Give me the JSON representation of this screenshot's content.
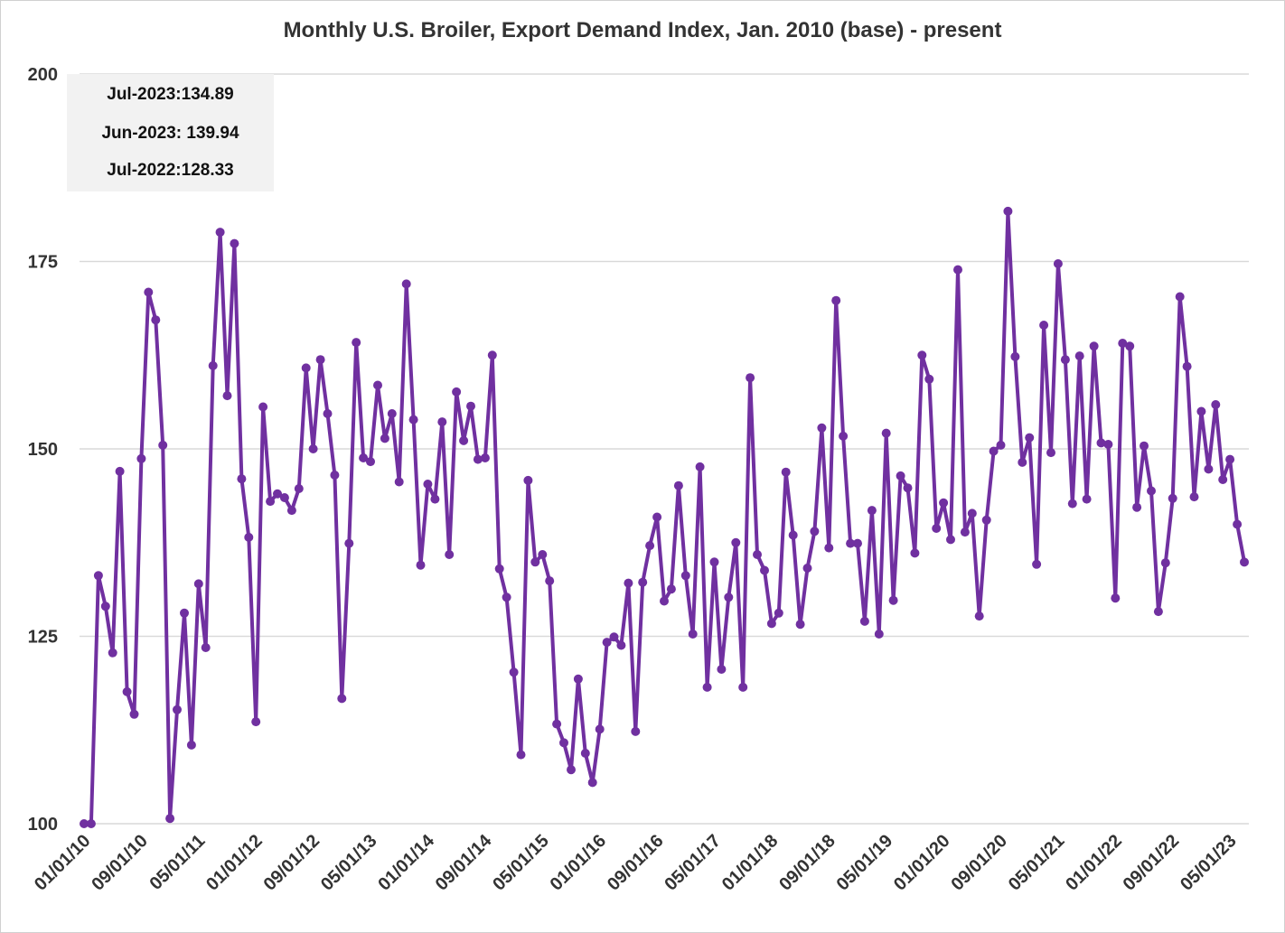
{
  "chart_data": {
    "type": "line",
    "title": "Monthly U.S. Broiler, Export Demand Index, Jan. 2010 (base) - present",
    "xlabel": "",
    "ylabel": "",
    "ylim": [
      100,
      200
    ],
    "y_ticks": [
      "100",
      "125",
      "150",
      "175",
      "200"
    ],
    "grid": "horizontal",
    "legend": "none",
    "colors": {
      "line": "#7030a0",
      "grid": "#d9d9d9",
      "callout_bg": "#f2f2f2"
    },
    "x_tick_labels": [
      "01/01/10",
      "09/01/10",
      "05/01/11",
      "01/01/12",
      "09/01/12",
      "05/01/13",
      "01/01/14",
      "09/01/14",
      "05/01/15",
      "01/01/16",
      "09/01/16",
      "05/01/17",
      "01/01/18",
      "09/01/18",
      "05/01/19",
      "01/01/20",
      "09/01/20",
      "05/01/21",
      "01/01/22",
      "09/01/22",
      "05/01/23"
    ],
    "start_month": "01/01/10",
    "end_month": "07/01/23",
    "annotations": [
      {
        "label": "Jul-2023:",
        "value": "134.89"
      },
      {
        "label": "Jun-2023:",
        "value": "139.94"
      },
      {
        "label": "Jul-2022:",
        "value": "128.33"
      }
    ],
    "values": [
      100.0,
      100.0,
      133.1,
      129.0,
      122.8,
      147.0,
      117.6,
      114.6,
      148.7,
      170.9,
      167.2,
      150.5,
      100.7,
      115.2,
      128.1,
      110.5,
      132.0,
      123.5,
      161.1,
      178.9,
      157.1,
      177.4,
      146.0,
      138.2,
      113.6,
      155.6,
      143.0,
      144.0,
      143.5,
      141.8,
      144.7,
      160.8,
      150.0,
      161.9,
      154.7,
      146.5,
      116.7,
      137.4,
      164.2,
      148.8,
      148.3,
      158.5,
      151.4,
      154.7,
      145.6,
      172.0,
      153.9,
      134.5,
      145.3,
      143.3,
      153.6,
      135.9,
      157.6,
      151.1,
      155.7,
      148.6,
      148.8,
      162.5,
      134.0,
      130.2,
      120.2,
      109.2,
      145.8,
      134.9,
      135.9,
      132.4,
      113.3,
      110.8,
      107.2,
      119.3,
      109.4,
      105.5,
      112.6,
      124.2,
      124.9,
      123.8,
      132.1,
      112.3,
      132.2,
      137.1,
      140.9,
      129.7,
      131.3,
      145.1,
      133.1,
      125.3,
      147.6,
      118.2,
      134.9,
      120.6,
      130.2,
      137.5,
      118.2,
      159.5,
      135.9,
      133.8,
      126.7,
      128.1,
      146.9,
      138.5,
      126.6,
      134.1,
      139.0,
      152.8,
      136.8,
      169.8,
      151.7,
      137.4,
      137.4,
      127.0,
      141.8,
      125.3,
      152.1,
      129.8,
      146.4,
      144.8,
      136.1,
      162.5,
      159.3,
      139.4,
      142.8,
      137.9,
      173.9,
      138.9,
      141.4,
      127.7,
      140.5,
      149.7,
      150.5,
      181.7,
      162.3,
      148.2,
      151.5,
      134.6,
      166.5,
      149.5,
      174.7,
      161.9,
      142.7,
      162.4,
      143.3,
      163.7,
      150.8,
      150.6,
      130.1,
      164.1,
      163.7,
      142.2,
      150.4,
      144.4,
      128.3,
      134.8,
      143.4,
      170.3,
      161.0,
      143.6,
      155.0,
      147.3,
      155.9,
      145.9,
      148.6,
      139.94,
      134.89
    ]
  }
}
